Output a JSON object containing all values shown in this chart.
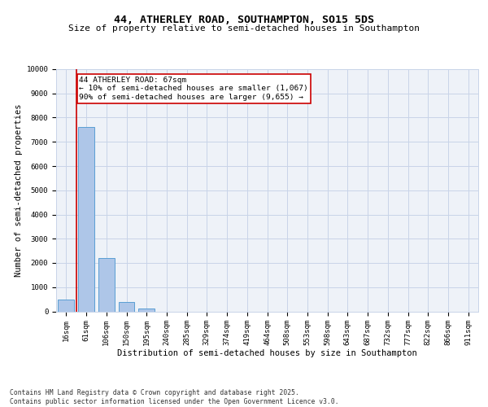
{
  "title_line1": "44, ATHERLEY ROAD, SOUTHAMPTON, SO15 5DS",
  "title_line2": "Size of property relative to semi-detached houses in Southampton",
  "xlabel": "Distribution of semi-detached houses by size in Southampton",
  "ylabel": "Number of semi-detached properties",
  "categories": [
    "16sqm",
    "61sqm",
    "106sqm",
    "150sqm",
    "195sqm",
    "240sqm",
    "285sqm",
    "329sqm",
    "374sqm",
    "419sqm",
    "464sqm",
    "508sqm",
    "553sqm",
    "598sqm",
    "643sqm",
    "687sqm",
    "732sqm",
    "777sqm",
    "822sqm",
    "866sqm",
    "911sqm"
  ],
  "values": [
    500,
    7600,
    2200,
    380,
    130,
    0,
    0,
    0,
    0,
    0,
    0,
    0,
    0,
    0,
    0,
    0,
    0,
    0,
    0,
    0,
    0
  ],
  "bar_color": "#aec6e8",
  "bar_edgecolor": "#5a9fd4",
  "property_sqm": 67,
  "annotation_title": "44 ATHERLEY ROAD: 67sqm",
  "annotation_line1": "← 10% of semi-detached houses are smaller (1,067)",
  "annotation_line2": "90% of semi-detached houses are larger (9,655) →",
  "vline_color": "#cc0000",
  "annotation_box_edgecolor": "#cc0000",
  "ylim": [
    0,
    10000
  ],
  "yticks": [
    0,
    1000,
    2000,
    3000,
    4000,
    5000,
    6000,
    7000,
    8000,
    9000,
    10000
  ],
  "bg_color": "#eef2f8",
  "grid_color": "#c8d4e8",
  "footer": "Contains HM Land Registry data © Crown copyright and database right 2025.\nContains public sector information licensed under the Open Government Licence v3.0.",
  "title_fontsize": 9.5,
  "subtitle_fontsize": 8,
  "axis_label_fontsize": 7.5,
  "tick_fontsize": 6.5,
  "annotation_fontsize": 6.8,
  "footer_fontsize": 5.8
}
